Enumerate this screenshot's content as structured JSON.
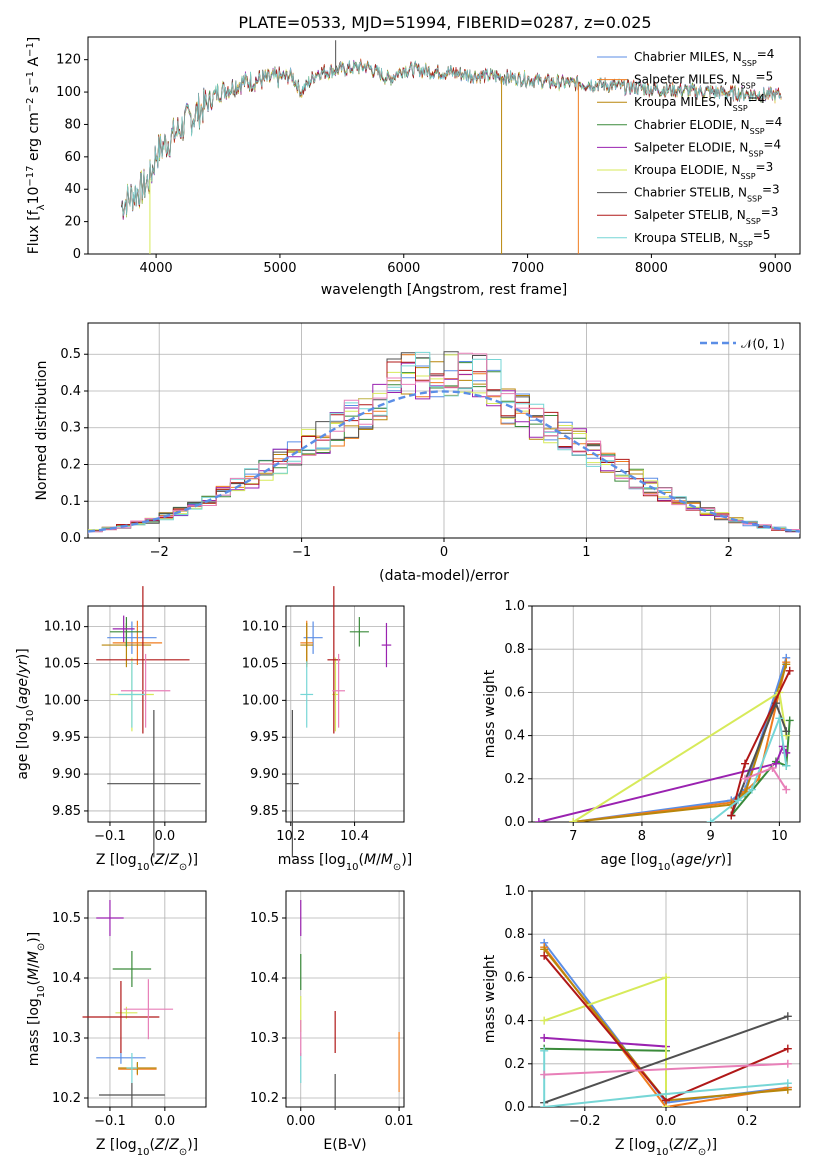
{
  "title": "PLATE=0533, MJD=51994, FIBERID=0287, z=0.025",
  "colors": {
    "chabrier_miles": "#5b8ee6",
    "salpeter_miles": "#f07c1e",
    "kroupa_miles": "#b8860b",
    "chabrier_elodie": "#3a8a3a",
    "salpeter_elodie": "#9a22b0",
    "kroupa_elodie": "#d7ea5a",
    "chabrier_stelib": "#505050",
    "salpeter_stelib": "#b01818",
    "kroupa_stelib": "#76d6d6",
    "pink": "#e87fb8",
    "grid": "#b0b0b0"
  },
  "legend": [
    {
      "name": "Chabrier MILES, N",
      "sub": "SSP",
      "suffix": "=4"
    },
    {
      "name": "Salpeter MILES, N",
      "sub": "SSP",
      "suffix": "=5"
    },
    {
      "name": "Kroupa MILES, N",
      "sub": "SSP",
      "suffix": "=4"
    },
    {
      "name": "Chabrier ELODIE, N",
      "sub": "SSP",
      "suffix": "=4"
    },
    {
      "name": "Salpeter ELODIE, N",
      "sub": "SSP",
      "suffix": "=4"
    },
    {
      "name": "Kroupa ELODIE, N",
      "sub": "SSP",
      "suffix": "=3"
    },
    {
      "name": "Chabrier STELIB, N",
      "sub": "SSP",
      "suffix": "=3"
    },
    {
      "name": "Salpeter STELIB, N",
      "sub": "SSP",
      "suffix": "=3"
    },
    {
      "name": "Kroupa STELIB, N",
      "sub": "SSP",
      "suffix": "=5"
    }
  ],
  "normal_legend": "𝒩(0, 1)",
  "chart_data": [
    {
      "id": "spectrum",
      "type": "line",
      "xlabel": "wavelength [Angstrom, rest frame]",
      "ylabel": "Flux [f_λ 10^-17 erg cm^-2 s^-1 A^-1]",
      "xlim": [
        3450,
        9200
      ],
      "ylim": [
        0,
        134
      ],
      "xticks": [
        4000,
        5000,
        6000,
        7000,
        8000,
        9000
      ],
      "yticks": [
        0,
        20,
        40,
        60,
        80,
        100,
        120
      ],
      "continuum": [
        [
          3720,
          30
        ],
        [
          3800,
          36
        ],
        [
          3880,
          40
        ],
        [
          3950,
          46
        ],
        [
          4000,
          62
        ],
        [
          4100,
          70
        ],
        [
          4250,
          82
        ],
        [
          4400,
          92
        ],
        [
          4500,
          100
        ],
        [
          4700,
          106
        ],
        [
          4900,
          108
        ],
        [
          5100,
          110
        ],
        [
          5170,
          100
        ],
        [
          5300,
          112
        ],
        [
          5500,
          114
        ],
        [
          5700,
          116
        ],
        [
          5880,
          108
        ],
        [
          6000,
          114
        ],
        [
          6200,
          113
        ],
        [
          6400,
          112
        ],
        [
          6563,
          110
        ],
        [
          6700,
          110
        ],
        [
          7000,
          108
        ],
        [
          7200,
          106
        ],
        [
          7500,
          105
        ],
        [
          8000,
          102
        ],
        [
          8500,
          100
        ],
        [
          9000,
          98
        ],
        [
          9050,
          98
        ]
      ],
      "spikes": [
        [
          5450,
          132
        ],
        [
          3950,
          0
        ],
        [
          6790,
          0
        ],
        [
          7410,
          0
        ]
      ],
      "grid": false
    },
    {
      "id": "residuals",
      "type": "histogram",
      "xlabel": "(data-model)/error",
      "ylabel": "Normed distribution",
      "xlim": [
        -2.5,
        2.5
      ],
      "ylim": [
        0,
        0.585
      ],
      "xticks": [
        -2,
        -1,
        0,
        1,
        2
      ],
      "yticks": [
        0.0,
        0.1,
        0.2,
        0.3,
        0.4,
        0.5
      ],
      "bin_width": 0.1,
      "grid": true,
      "normal_curve": {
        "mean": 0,
        "sigma": 1
      }
    },
    {
      "id": "age_vs_Z",
      "type": "scatter",
      "error_bars": true,
      "xlabel": "Z [log10(Z/Z_sun)]",
      "ylabel": "age  [log10(age/yr)]",
      "xlim": [
        -0.14,
        0.075
      ],
      "ylim": [
        9.835,
        10.128
      ],
      "xticks": [
        -0.1,
        0.0
      ],
      "yticks": [
        9.85,
        9.9,
        9.95,
        10.0,
        10.05,
        10.1
      ],
      "grid": true,
      "points": [
        {
          "c": "chabrier_miles",
          "x": -0.06,
          "xe": 0.045,
          "y": 10.085,
          "ye": 0.022
        },
        {
          "c": "salpeter_miles",
          "x": -0.05,
          "xe": 0.045,
          "y": 10.078,
          "ye": 0.03
        },
        {
          "c": "kroupa_miles",
          "x": -0.07,
          "xe": 0.045,
          "y": 10.075,
          "ye": 0.03
        },
        {
          "c": "chabrier_elodie",
          "x": -0.07,
          "xe": 0.03,
          "y": 10.093,
          "ye": 0.02
        },
        {
          "c": "salpeter_elodie",
          "x": -0.075,
          "xe": 0.02,
          "y": 10.097,
          "ye": 0.018
        },
        {
          "c": "kroupa_elodie",
          "x": -0.06,
          "xe": 0.04,
          "y": 10.008,
          "ye": 0.05
        },
        {
          "c": "chabrier_stelib",
          "x": -0.02,
          "xe": 0.085,
          "y": 9.887,
          "ye": 0.1
        },
        {
          "c": "salpeter_stelib",
          "x": -0.04,
          "xe": 0.085,
          "y": 10.055,
          "ye": 0.1
        },
        {
          "c": "kroupa_stelib",
          "x": -0.06,
          "xe": 0.025,
          "y": 10.008,
          "ye": 0.045
        },
        {
          "c": "pink",
          "x": -0.035,
          "xe": 0.045,
          "y": 10.013,
          "ye": 0.05
        }
      ]
    },
    {
      "id": "age_vs_mass",
      "type": "scatter",
      "error_bars": true,
      "xlabel": "mass [log10(M/M_sun)]",
      "ylabel": "",
      "xlim": [
        10.185,
        10.555
      ],
      "ylim": [
        9.835,
        10.128
      ],
      "xticks": [
        10.2,
        10.4
      ],
      "yticks": [
        9.85,
        9.9,
        9.95,
        10.0,
        10.05,
        10.1
      ],
      "grid": true,
      "points": [
        {
          "c": "chabrier_miles",
          "x": 10.27,
          "xe": 0.03,
          "y": 10.085,
          "ye": 0.022
        },
        {
          "c": "salpeter_miles",
          "x": 10.25,
          "xe": 0.02,
          "y": 10.078,
          "ye": 0.03
        },
        {
          "c": "kroupa_miles",
          "x": 10.25,
          "xe": 0.02,
          "y": 10.075,
          "ye": 0.03
        },
        {
          "c": "chabrier_elodie",
          "x": 10.415,
          "xe": 0.03,
          "y": 10.093,
          "ye": 0.02
        },
        {
          "c": "salpeter_elodie",
          "x": 10.5,
          "xe": 0.015,
          "y": 10.075,
          "ye": 0.03
        },
        {
          "c": "kroupa_elodie",
          "x": 10.34,
          "xe": 0.01,
          "y": 10.008,
          "ye": 0.05
        },
        {
          "c": "chabrier_stelib",
          "x": 10.205,
          "xe": 0.02,
          "y": 9.887,
          "ye": 0.1
        },
        {
          "c": "salpeter_stelib",
          "x": 10.335,
          "xe": 0.02,
          "y": 10.055,
          "ye": 0.1
        },
        {
          "c": "kroupa_stelib",
          "x": 10.25,
          "xe": 0.02,
          "y": 10.008,
          "ye": 0.045
        },
        {
          "c": "pink",
          "x": 10.35,
          "xe": 0.02,
          "y": 10.013,
          "ye": 0.05
        }
      ]
    },
    {
      "id": "weight_vs_age",
      "type": "line",
      "xlabel": "age  [log10(age/yr)]",
      "ylabel": "mass weight",
      "xlim": [
        6.4,
        10.3
      ],
      "ylim": [
        0,
        1.0
      ],
      "xticks": [
        7,
        8,
        9,
        10
      ],
      "yticks": [
        0.0,
        0.2,
        0.4,
        0.6,
        0.8,
        1.0
      ],
      "grid": true,
      "series": [
        {
          "c": "chabrier_miles",
          "points": [
            [
              7.0,
              0.0
            ],
            [
              9.3,
              0.1
            ],
            [
              9.5,
              0.15
            ],
            [
              10.1,
              0.76
            ]
          ]
        },
        {
          "c": "salpeter_miles",
          "points": [
            [
              7.0,
              0.0
            ],
            [
              9.3,
              0.09
            ],
            [
              9.5,
              0.14
            ],
            [
              9.7,
              0.2
            ],
            [
              10.1,
              0.74
            ]
          ]
        },
        {
          "c": "kroupa_miles",
          "points": [
            [
              7.0,
              0.0
            ],
            [
              9.3,
              0.08
            ],
            [
              9.5,
              0.13
            ],
            [
              10.1,
              0.73
            ]
          ]
        },
        {
          "c": "chabrier_elodie",
          "points": [
            [
              9.3,
              0.03
            ],
            [
              9.95,
              0.28
            ],
            [
              10.1,
              0.26
            ],
            [
              10.15,
              0.47
            ]
          ]
        },
        {
          "c": "salpeter_elodie",
          "points": [
            [
              6.5,
              0.0
            ],
            [
              9.95,
              0.27
            ],
            [
              10.05,
              0.35
            ],
            [
              10.1,
              0.32
            ]
          ]
        },
        {
          "c": "kroupa_elodie",
          "points": [
            [
              7.0,
              0.0
            ],
            [
              10.0,
              0.6
            ],
            [
              10.1,
              0.4
            ]
          ]
        },
        {
          "c": "chabrier_stelib",
          "points": [
            [
              9.3,
              0.03
            ],
            [
              9.95,
              0.55
            ],
            [
              10.1,
              0.42
            ]
          ]
        },
        {
          "c": "salpeter_stelib",
          "points": [
            [
              9.3,
              0.03
            ],
            [
              9.5,
              0.27
            ],
            [
              10.15,
              0.7
            ]
          ]
        },
        {
          "c": "kroupa_stelib",
          "points": [
            [
              9.0,
              0.0
            ],
            [
              9.4,
              0.1
            ],
            [
              9.6,
              0.15
            ],
            [
              10.0,
              0.48
            ],
            [
              10.1,
              0.26
            ]
          ]
        },
        {
          "c": "pink",
          "points": [
            [
              9.5,
              0.2
            ],
            [
              9.9,
              0.25
            ],
            [
              10.1,
              0.15
            ]
          ]
        }
      ]
    },
    {
      "id": "mass_vs_Z",
      "type": "scatter",
      "error_bars": true,
      "xlabel": "Z [log10(Z/Z_sun)]",
      "ylabel": "mass [log10(M/M_sun)]",
      "xlim": [
        -0.14,
        0.075
      ],
      "ylim": [
        10.185,
        10.545
      ],
      "xticks": [
        -0.1,
        0.0
      ],
      "yticks": [
        10.2,
        10.3,
        10.4,
        10.5
      ],
      "grid": true,
      "points": [
        {
          "c": "chabrier_miles",
          "x": -0.08,
          "xe": 0.045,
          "y": 10.267,
          "ye": 0.01
        },
        {
          "c": "salpeter_miles",
          "x": -0.05,
          "xe": 0.035,
          "y": 10.248,
          "ye": 0.01
        },
        {
          "c": "kroupa_miles",
          "x": -0.05,
          "xe": 0.035,
          "y": 10.25,
          "ye": 0.01
        },
        {
          "c": "chabrier_elodie",
          "x": -0.06,
          "xe": 0.035,
          "y": 10.415,
          "ye": 0.03
        },
        {
          "c": "salpeter_elodie",
          "x": -0.1,
          "xe": 0.025,
          "y": 10.5,
          "ye": 0.03
        },
        {
          "c": "kroupa_elodie",
          "x": -0.07,
          "xe": 0.02,
          "y": 10.342,
          "ye": 0.01
        },
        {
          "c": "chabrier_stelib",
          "x": -0.06,
          "xe": 0.06,
          "y": 10.205,
          "ye": 0.02
        },
        {
          "c": "salpeter_stelib",
          "x": -0.08,
          "xe": 0.07,
          "y": 10.335,
          "ye": 0.06
        },
        {
          "c": "kroupa_stelib",
          "x": -0.06,
          "xe": 0.01,
          "y": 10.25,
          "ye": 0.025
        },
        {
          "c": "pink",
          "x": -0.03,
          "xe": 0.045,
          "y": 10.348,
          "ye": 0.05
        }
      ]
    },
    {
      "id": "mass_vs_EBV",
      "type": "scatter",
      "error_bars": true,
      "xlabel": "E(B-V)",
      "ylabel": "",
      "xlim": [
        -0.0015,
        0.0105
      ],
      "ylim": [
        10.185,
        10.545
      ],
      "xticks": [
        0.0,
        0.01
      ],
      "yticks": [
        10.2,
        10.3,
        10.4,
        10.5
      ],
      "grid": true,
      "points": [
        {
          "c": "salpeter_elodie",
          "x": 0.0,
          "xe": 0.0,
          "y": 10.5,
          "ye": 0.03
        },
        {
          "c": "chabrier_elodie",
          "x": 0.0,
          "xe": 0.0,
          "y": 10.41,
          "ye": 0.03
        },
        {
          "c": "kroupa_elodie",
          "x": 0.0,
          "xe": 0.0,
          "y": 10.34,
          "ye": 0.03
        },
        {
          "c": "kroupa_stelib",
          "x": 0.0,
          "xe": 0.0,
          "y": 10.25,
          "ye": 0.025
        },
        {
          "c": "pink",
          "x": 0.0,
          "xe": 0.0,
          "y": 10.3,
          "ye": 0.03
        },
        {
          "c": "salpeter_stelib",
          "x": 0.0035,
          "xe": 0.0,
          "y": 10.31,
          "ye": 0.035
        },
        {
          "c": "chabrier_stelib",
          "x": 0.0035,
          "xe": 0.0,
          "y": 10.21,
          "ye": 0.03
        },
        {
          "c": "salpeter_miles",
          "x": 0.01,
          "xe": 0.0,
          "y": 10.26,
          "ye": 0.05
        }
      ]
    },
    {
      "id": "weight_vs_Z",
      "type": "line",
      "xlabel": "Z [log10(Z/Z_sun)]",
      "ylabel": "mass weight",
      "xlim": [
        -0.33,
        0.33
      ],
      "ylim": [
        0,
        1.0
      ],
      "xticks": [
        -0.2,
        0.0,
        0.2
      ],
      "yticks": [
        0.0,
        0.2,
        0.4,
        0.6,
        0.8,
        1.0
      ],
      "grid": true,
      "series": [
        {
          "c": "chabrier_miles",
          "points": [
            [
              -0.3,
              0.76
            ],
            [
              0.0,
              0.02
            ],
            [
              0.3,
              0.09
            ]
          ]
        },
        {
          "c": "salpeter_miles",
          "points": [
            [
              -0.3,
              0.74
            ],
            [
              0.0,
              0.0
            ],
            [
              0.3,
              0.09
            ]
          ]
        },
        {
          "c": "kroupa_miles",
          "points": [
            [
              -0.3,
              0.73
            ],
            [
              0.0,
              0.03
            ],
            [
              0.3,
              0.08
            ]
          ]
        },
        {
          "c": "chabrier_elodie",
          "points": [
            [
              -0.3,
              0.27
            ],
            [
              0.0,
              0.26
            ]
          ]
        },
        {
          "c": "salpeter_elodie",
          "points": [
            [
              -0.3,
              0.32
            ],
            [
              0.0,
              0.28
            ]
          ]
        },
        {
          "c": "kroupa_elodie",
          "points": [
            [
              -0.3,
              0.4
            ],
            [
              0.0,
              0.6
            ],
            [
              0.0,
              0.0
            ]
          ]
        },
        {
          "c": "chabrier_stelib",
          "points": [
            [
              -0.3,
              0.02
            ],
            [
              0.3,
              0.42
            ]
          ]
        },
        {
          "c": "salpeter_stelib",
          "points": [
            [
              -0.3,
              0.7
            ],
            [
              0.0,
              0.03
            ],
            [
              0.3,
              0.27
            ]
          ]
        },
        {
          "c": "kroupa_stelib",
          "points": [
            [
              -0.3,
              0.26
            ],
            [
              -0.3,
              0.0
            ],
            [
              0.0,
              0.06
            ],
            [
              0.3,
              0.11
            ]
          ]
        },
        {
          "c": "pink",
          "points": [
            [
              -0.3,
              0.15
            ],
            [
              0.3,
              0.2
            ]
          ]
        }
      ]
    }
  ]
}
